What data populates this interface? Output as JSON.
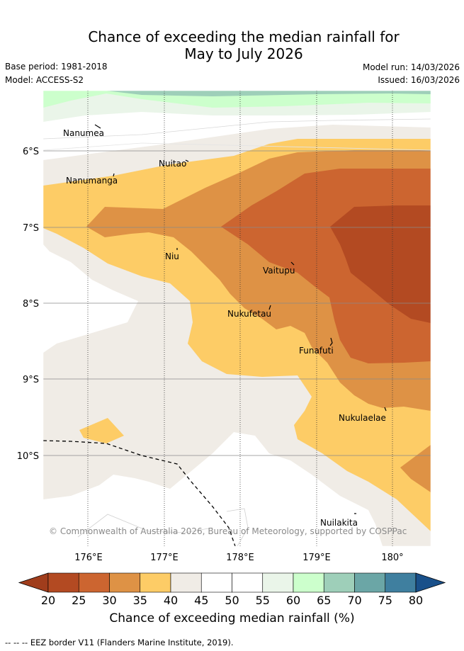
{
  "title_line1": "Chance of exceeding the median rainfall for",
  "title_line2": "May to July 2026",
  "meta": {
    "base_period": "Base period: 1981-2018",
    "model": "Model: ACCESS-S2",
    "model_run": "Model run: 14/03/2026",
    "issued": "Issued: 16/03/2026"
  },
  "map": {
    "lat_ticks": [
      "6°S",
      "7°S",
      "8°S",
      "9°S",
      "10°S"
    ],
    "lon_ticks": [
      "176°E",
      "177°E",
      "178°E",
      "179°E",
      "180°"
    ],
    "places": [
      "Nanumea",
      "Nuitao",
      "Nanumanga",
      "Niu",
      "Vaitupu",
      "Nukufetau",
      "Funafuti",
      "Nukulaelae",
      "Nuilakita"
    ],
    "copyright": "© Commonwealth of Australia 2026, Bureau of Meteorology, supported by COSPPac"
  },
  "colorbar": {
    "ticks": [
      "20",
      "25",
      "30",
      "35",
      "40",
      "45",
      "50",
      "55",
      "60",
      "65",
      "70",
      "75",
      "80"
    ],
    "colors": [
      "#b34a22",
      "#cc6530",
      "#de9245",
      "#fdcc66",
      "#f0ece6",
      "#ffffff",
      "#ffffff",
      "#eaf5e9",
      "#ccffcc",
      "#9ecfb9",
      "#6ba6a6",
      "#3f7f9f"
    ],
    "low_color": "#a03d1c",
    "high_color": "#19508a",
    "label": "Chance of exceeding median rainfall (%)"
  },
  "footer": "-- -- -- EEZ border V11 (Flanders Marine Institute, 2019)."
}
